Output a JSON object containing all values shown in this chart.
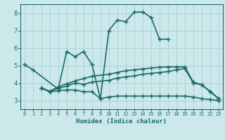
{
  "xlabel": "Humidex (Indice chaleur)",
  "xlim": [
    -0.5,
    23.5
  ],
  "ylim": [
    2.5,
    8.5
  ],
  "xticks": [
    0,
    1,
    2,
    3,
    4,
    5,
    6,
    7,
    8,
    9,
    10,
    11,
    12,
    13,
    14,
    15,
    16,
    17,
    18,
    19,
    20,
    21,
    22,
    23
  ],
  "yticks": [
    3,
    4,
    5,
    6,
    7,
    8
  ],
  "bg_color": "#cce8ea",
  "grid_color": "#aed4d6",
  "line_color": "#1a6b6b",
  "line_width": 1.2,
  "marker": "+",
  "marker_size": 4,
  "line1_x": [
    0,
    1,
    4,
    5,
    6,
    7,
    8,
    9,
    10,
    11,
    12,
    13,
    14,
    15,
    16,
    17
  ],
  "line1_y": [
    5.05,
    4.75,
    3.65,
    5.8,
    5.5,
    5.8,
    5.05,
    3.1,
    7.0,
    7.6,
    7.5,
    8.05,
    8.05,
    7.75,
    6.5,
    6.5
  ],
  "line2_x": [
    2,
    3,
    4,
    5,
    6,
    7,
    8,
    9,
    10,
    11,
    12,
    13,
    14,
    15,
    16,
    17,
    18,
    19,
    20,
    21,
    22,
    23
  ],
  "line2_y": [
    3.7,
    3.5,
    3.55,
    3.6,
    3.6,
    3.5,
    3.5,
    3.1,
    3.2,
    3.25,
    3.25,
    3.25,
    3.25,
    3.25,
    3.25,
    3.25,
    3.25,
    3.25,
    3.2,
    3.1,
    3.05,
    3.0
  ],
  "line3_x": [
    2,
    3,
    4,
    5,
    6,
    7,
    8,
    10,
    11,
    12,
    13,
    14,
    15,
    16,
    17,
    18,
    19,
    20,
    21,
    22,
    23
  ],
  "line3_y": [
    3.72,
    3.52,
    3.7,
    3.82,
    4.0,
    3.92,
    4.05,
    4.15,
    4.28,
    4.35,
    4.4,
    4.5,
    4.55,
    4.6,
    4.65,
    4.75,
    4.82,
    4.0,
    3.9,
    3.5,
    3.1
  ],
  "line4_x": [
    2,
    3,
    4,
    5,
    6,
    7,
    8,
    10,
    11,
    12,
    13,
    14,
    15,
    16,
    17,
    18,
    19,
    20,
    21,
    22,
    23
  ],
  "line4_y": [
    3.72,
    3.52,
    3.78,
    3.95,
    4.12,
    4.25,
    4.38,
    4.5,
    4.6,
    4.7,
    4.75,
    4.8,
    4.85,
    4.9,
    4.92,
    4.92,
    4.92,
    4.05,
    3.9,
    3.52,
    3.12
  ]
}
